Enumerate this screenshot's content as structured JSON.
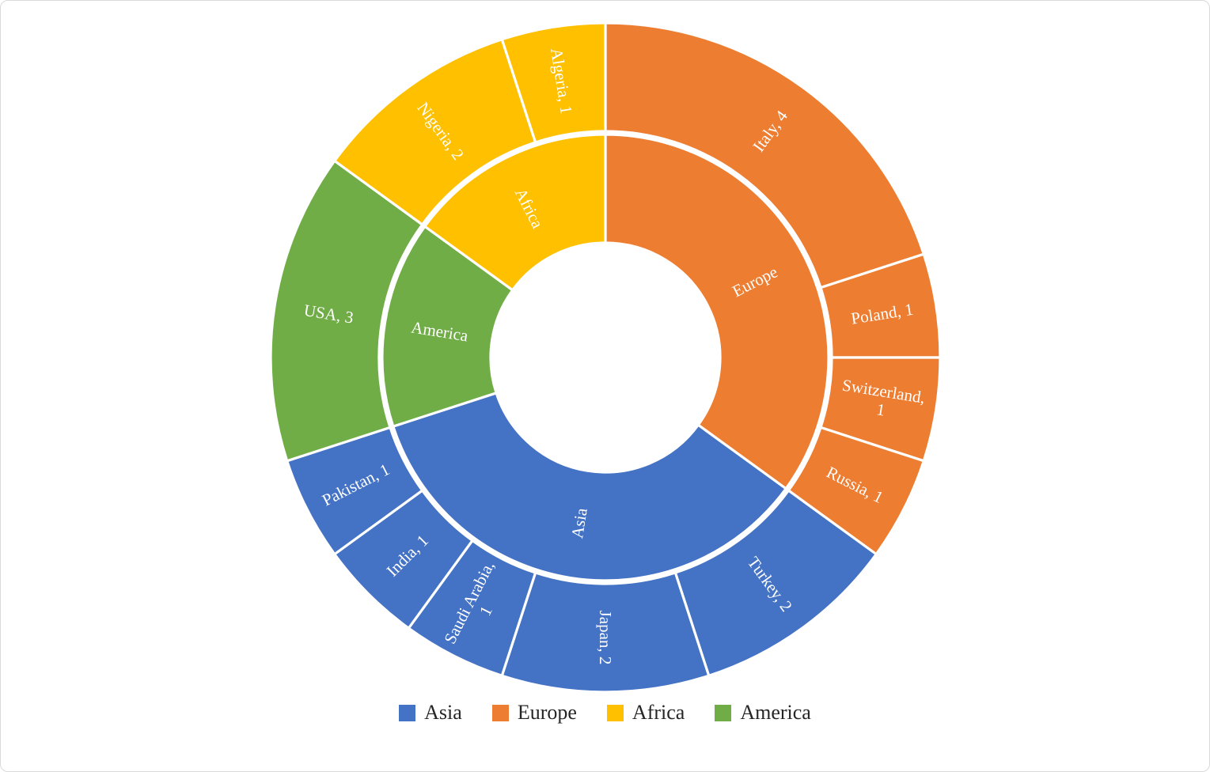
{
  "figure": {
    "background": "#ffffff",
    "frame_color": "#d9d9d9"
  },
  "chart_data": {
    "type": "sunburst",
    "title": "",
    "total_units": 20,
    "separator_color": "#ffffff",
    "palette": {
      "Asia": "#4472C4",
      "Europe": "#ED7D31",
      "Africa": "#FFC000",
      "America": "#70AD47"
    },
    "inner_ring": [
      {
        "label": "Europe",
        "value": 7
      },
      {
        "label": "Asia",
        "value": 7
      },
      {
        "label": "America",
        "value": 3
      },
      {
        "label": "Africa",
        "value": 3
      }
    ],
    "outer_ring": [
      {
        "label": "Italy",
        "value": 4,
        "parent": "Europe",
        "display": "Italy, 4"
      },
      {
        "label": "Poland",
        "value": 1,
        "parent": "Europe",
        "display": "Poland, 1"
      },
      {
        "label": "Switzerland",
        "value": 1,
        "parent": "Europe",
        "display": "Switzerland, 1",
        "wrap": true
      },
      {
        "label": "Russia",
        "value": 1,
        "parent": "Europe",
        "display": "Russia, 1"
      },
      {
        "label": "Turkey",
        "value": 2,
        "parent": "Asia",
        "display": "Turkey, 2"
      },
      {
        "label": "Japan",
        "value": 2,
        "parent": "Asia",
        "display": "Japan, 2"
      },
      {
        "label": "Saudi Arabia",
        "value": 1,
        "parent": "Asia",
        "display": "Saudi Arabia, 1",
        "wrap": true
      },
      {
        "label": "India",
        "value": 1,
        "parent": "Asia",
        "display": "India, 1"
      },
      {
        "label": "Pakistan",
        "value": 1,
        "parent": "Asia",
        "display": "Pakistan, 1"
      },
      {
        "label": "USA",
        "value": 3,
        "parent": "America",
        "display": "USA, 3"
      },
      {
        "label": "Nigeria",
        "value": 2,
        "parent": "Africa",
        "display": "Nigeria, 2"
      },
      {
        "label": "Algeria",
        "value": 1,
        "parent": "Africa",
        "display": "Algeria, 1"
      }
    ],
    "legend": [
      {
        "label": "Asia",
        "color": "#4472C4"
      },
      {
        "label": "Europe",
        "color": "#ED7D31"
      },
      {
        "label": "Africa",
        "color": "#FFC000"
      },
      {
        "label": "America",
        "color": "#70AD47"
      }
    ],
    "legend_position": "bottom",
    "label_text_color": "#ffffff",
    "start_angle_deg": 0,
    "direction": "clockwise"
  }
}
